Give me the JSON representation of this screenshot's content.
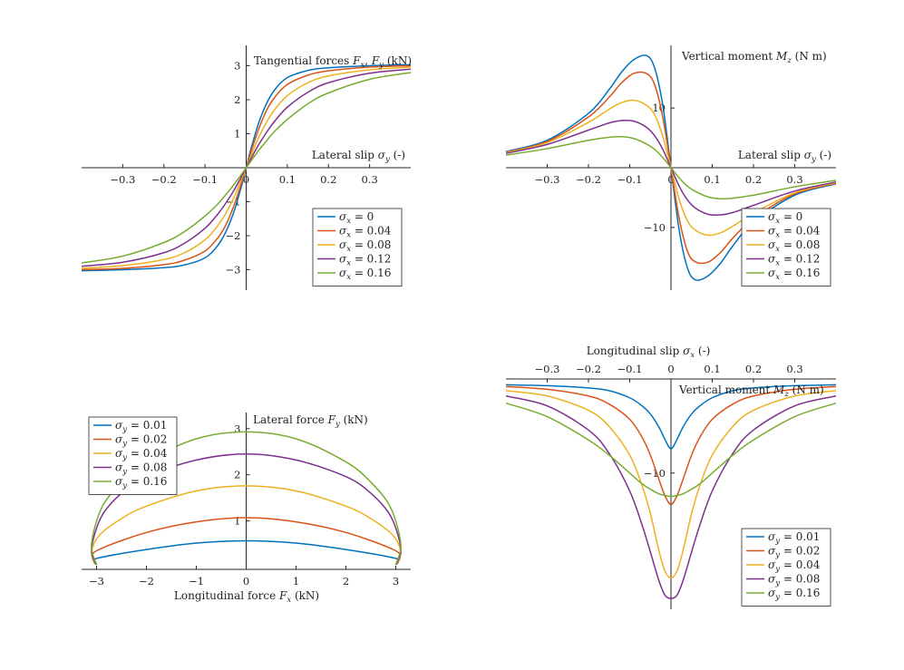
{
  "colors": [
    "#0072BD",
    "#D95319",
    "#EDB120",
    "#7E2F8E",
    "#77AC30"
  ],
  "chart_data": [
    {
      "type": "line",
      "title": "",
      "ylabel": "Tangential forces F_x, F_y (kN)",
      "ylabel_parts": [
        "Tangential forces ",
        "F",
        "x",
        ", ",
        "F",
        "y",
        " (kN)"
      ],
      "xlabel": "Lateral slip σ_y (-)",
      "xlabel_parts": [
        "Lateral slip ",
        "σ",
        "y",
        " (-)"
      ],
      "xlim": [
        -0.4,
        0.4
      ],
      "ylim": [
        -3.6,
        3.6
      ],
      "xticks": [
        -0.3,
        -0.2,
        -0.1,
        0,
        0.1,
        0.2,
        0.3
      ],
      "xtick_labels": [
        "−0.3",
        "−0.2",
        "−0.1",
        "0",
        "0.1",
        "0.2",
        "0.3"
      ],
      "yticks": [
        -3,
        -2,
        -1,
        1,
        2,
        3
      ],
      "ytick_labels": [
        "−3",
        "−2",
        "−1",
        "1",
        "2",
        "3"
      ],
      "legend_position": "lower-right",
      "legend_var": "σ",
      "legend_sub": "x",
      "series": [
        {
          "name": "σx = 0",
          "value_label": "0",
          "x": [
            -0.4,
            -0.3,
            -0.2,
            -0.15,
            -0.1,
            -0.07,
            -0.05,
            -0.03,
            -0.01,
            0,
            0.01,
            0.03,
            0.05,
            0.07,
            0.1,
            0.15,
            0.2,
            0.3,
            0.4
          ],
          "y": [
            -3.03,
            -3.0,
            -2.94,
            -2.86,
            -2.65,
            -2.3,
            -1.9,
            -1.3,
            -0.48,
            0,
            0.48,
            1.3,
            1.9,
            2.3,
            2.65,
            2.86,
            2.94,
            3.0,
            3.03
          ]
        },
        {
          "name": "σx = 0.04",
          "value_label": "0.04",
          "x": [
            -0.4,
            -0.3,
            -0.2,
            -0.15,
            -0.1,
            -0.07,
            -0.05,
            -0.03,
            -0.01,
            0,
            0.01,
            0.03,
            0.05,
            0.07,
            0.1,
            0.15,
            0.2,
            0.3,
            0.4
          ],
          "y": [
            -3.0,
            -2.96,
            -2.85,
            -2.72,
            -2.45,
            -2.08,
            -1.7,
            -1.12,
            -0.4,
            0,
            0.4,
            1.12,
            1.7,
            2.08,
            2.45,
            2.72,
            2.85,
            2.96,
            3.0
          ]
        },
        {
          "name": "σx = 0.08",
          "value_label": "0.08",
          "x": [
            -0.4,
            -0.3,
            -0.2,
            -0.15,
            -0.1,
            -0.07,
            -0.05,
            -0.03,
            -0.01,
            0,
            0.01,
            0.03,
            0.05,
            0.07,
            0.1,
            0.15,
            0.2,
            0.3,
            0.4
          ],
          "y": [
            -2.96,
            -2.88,
            -2.7,
            -2.5,
            -2.12,
            -1.72,
            -1.35,
            -0.88,
            -0.3,
            0,
            0.3,
            0.88,
            1.35,
            1.72,
            2.12,
            2.5,
            2.7,
            2.88,
            2.96
          ]
        },
        {
          "name": "σx = 0.12",
          "value_label": "0.12",
          "x": [
            -0.4,
            -0.3,
            -0.2,
            -0.15,
            -0.1,
            -0.07,
            -0.05,
            -0.03,
            -0.01,
            0,
            0.01,
            0.03,
            0.05,
            0.07,
            0.1,
            0.15,
            0.2,
            0.3,
            0.4
          ],
          "y": [
            -2.9,
            -2.78,
            -2.5,
            -2.22,
            -1.78,
            -1.38,
            -1.05,
            -0.67,
            -0.23,
            0,
            0.23,
            0.67,
            1.05,
            1.38,
            1.78,
            2.22,
            2.5,
            2.78,
            2.9
          ]
        },
        {
          "name": "σx = 0.16",
          "value_label": "0.16",
          "x": [
            -0.4,
            -0.3,
            -0.2,
            -0.15,
            -0.1,
            -0.07,
            -0.05,
            -0.03,
            -0.01,
            0,
            0.01,
            0.03,
            0.05,
            0.07,
            0.1,
            0.15,
            0.2,
            0.3,
            0.4
          ],
          "y": [
            -2.8,
            -2.6,
            -2.2,
            -1.88,
            -1.42,
            -1.08,
            -0.8,
            -0.5,
            -0.17,
            0,
            0.17,
            0.5,
            0.8,
            1.08,
            1.42,
            1.88,
            2.2,
            2.6,
            2.8
          ]
        }
      ]
    },
    {
      "type": "line",
      "title": "",
      "ylabel": "Vertical moment M_z (N m)",
      "ylabel_parts": [
        "Vertical moment ",
        "M",
        "z",
        " (N m)"
      ],
      "xlabel": "Lateral slip σ_y (-)",
      "xlabel_parts": [
        "Lateral slip ",
        "σ",
        "y",
        " (-)"
      ],
      "xlim": [
        -0.4,
        0.4
      ],
      "ylim": [
        -20.5,
        20.5
      ],
      "xticks": [
        -0.3,
        -0.2,
        -0.1,
        0,
        0.1,
        0.2,
        0.3
      ],
      "xtick_labels": [
        "−0.3",
        "−0.2",
        "−0.1",
        "0",
        "0.1",
        "0.2",
        "0.3"
      ],
      "yticks": [
        -10,
        10
      ],
      "ytick_labels": [
        "−10",
        "10"
      ],
      "legend_position": "lower-right",
      "legend_var": "σ",
      "legend_sub": "x",
      "series": [
        {
          "name": "σx = 0",
          "value_label": "0",
          "x": [
            -0.4,
            -0.3,
            -0.2,
            -0.15,
            -0.12,
            -0.09,
            -0.06,
            -0.04,
            -0.02,
            0,
            0.02,
            0.04,
            0.06,
            0.09,
            0.12,
            0.15,
            0.2,
            0.3,
            0.4
          ],
          "y": [
            2.7,
            4.6,
            9.1,
            13.1,
            16.0,
            18.1,
            18.8,
            16.8,
            10.5,
            0,
            -10.5,
            -16.8,
            -18.8,
            -18.1,
            -16.0,
            -13.1,
            -9.1,
            -4.6,
            -2.7
          ]
        },
        {
          "name": "σx = 0.04",
          "value_label": "0.04",
          "x": [
            -0.4,
            -0.3,
            -0.2,
            -0.15,
            -0.12,
            -0.09,
            -0.06,
            -0.04,
            -0.02,
            0,
            0.02,
            0.04,
            0.06,
            0.09,
            0.12,
            0.15,
            0.2,
            0.3,
            0.4
          ],
          "y": [
            2.6,
            4.4,
            8.5,
            11.8,
            14.2,
            15.8,
            15.8,
            14.0,
            8.5,
            0,
            -8.5,
            -14.0,
            -15.8,
            -15.8,
            -14.2,
            -11.8,
            -8.5,
            -4.4,
            -2.6
          ]
        },
        {
          "name": "σx = 0.08",
          "value_label": "0.08",
          "x": [
            -0.4,
            -0.3,
            -0.2,
            -0.15,
            -0.12,
            -0.09,
            -0.06,
            -0.04,
            -0.02,
            0,
            0.02,
            0.04,
            0.06,
            0.09,
            0.12,
            0.15,
            0.2,
            0.3,
            0.4
          ],
          "y": [
            2.5,
            4.2,
            7.6,
            9.8,
            10.9,
            11.3,
            10.5,
            8.9,
            5.3,
            0,
            -5.3,
            -8.9,
            -10.5,
            -11.3,
            -10.9,
            -9.8,
            -7.6,
            -4.2,
            -2.5
          ]
        },
        {
          "name": "σx = 0.12",
          "value_label": "0.12",
          "x": [
            -0.4,
            -0.3,
            -0.2,
            -0.15,
            -0.12,
            -0.09,
            -0.06,
            -0.04,
            -0.02,
            0,
            0.02,
            0.04,
            0.06,
            0.09,
            0.12,
            0.15,
            0.2,
            0.3,
            0.4
          ],
          "y": [
            2.4,
            3.9,
            6.3,
            7.5,
            7.9,
            7.8,
            6.8,
            5.4,
            3.1,
            0,
            -3.1,
            -5.4,
            -6.8,
            -7.8,
            -7.9,
            -7.5,
            -6.3,
            -3.9,
            -2.4
          ]
        },
        {
          "name": "σx = 0.16",
          "value_label": "0.16",
          "x": [
            -0.4,
            -0.3,
            -0.2,
            -0.15,
            -0.12,
            -0.09,
            -0.06,
            -0.04,
            -0.02,
            0,
            0.02,
            0.04,
            0.06,
            0.09,
            0.12,
            0.15,
            0.2,
            0.3,
            0.4
          ],
          "y": [
            2.1,
            3.2,
            4.6,
            5.1,
            5.2,
            4.9,
            4.0,
            3.1,
            1.7,
            0,
            -1.7,
            -3.1,
            -4.0,
            -4.9,
            -5.2,
            -5.1,
            -4.6,
            -3.2,
            -2.1
          ]
        }
      ]
    },
    {
      "type": "line",
      "title": "",
      "ylabel": "Lateral force F_y (kN)",
      "ylabel_parts": [
        "Lateral force ",
        "F",
        "y",
        " (kN)"
      ],
      "xlabel": "Longitudinal force F_x (kN)",
      "xlabel_parts": [
        "Longitudinal force ",
        "F",
        "x",
        " (kN)"
      ],
      "xlim": [
        -3.3,
        3.3
      ],
      "ylim": [
        -0.05,
        3.35
      ],
      "xticks": [
        -3,
        -2,
        -1,
        0,
        1,
        2,
        3
      ],
      "xtick_labels": [
        "−3",
        "−2",
        "−1",
        "0",
        "1",
        "2",
        "3"
      ],
      "yticks": [
        1,
        2,
        3
      ],
      "ytick_labels": [
        "1",
        "2",
        "3"
      ],
      "legend_position": "top-left",
      "legend_var": "σ",
      "legend_sub": "y",
      "series": [
        {
          "name": "σy = 0.01",
          "value_label": "0.01",
          "x": [
            -3.0,
            -3.05,
            -2.95,
            -2.0,
            -1.0,
            0,
            1.0,
            2.0,
            2.95,
            3.05,
            3.0
          ],
          "y": [
            0.05,
            0.12,
            0.2,
            0.38,
            0.52,
            0.57,
            0.52,
            0.38,
            0.2,
            0.12,
            0.05
          ]
        },
        {
          "name": "σy = 0.02",
          "value_label": "0.02",
          "x": [
            -3.0,
            -3.08,
            -2.95,
            -2.0,
            -1.0,
            0,
            1.0,
            2.0,
            2.95,
            3.08,
            3.0
          ],
          "y": [
            0.05,
            0.2,
            0.38,
            0.75,
            0.98,
            1.07,
            0.98,
            0.75,
            0.38,
            0.2,
            0.05
          ]
        },
        {
          "name": "σy = 0.04",
          "value_label": "0.04",
          "x": [
            -3.0,
            -3.1,
            -2.95,
            -2.5,
            -2.0,
            -1.0,
            0,
            1.0,
            2.0,
            2.5,
            2.95,
            3.1,
            3.0
          ],
          "y": [
            0.05,
            0.3,
            0.68,
            1.05,
            1.32,
            1.65,
            1.76,
            1.65,
            1.32,
            1.05,
            0.68,
            0.3,
            0.05
          ]
        },
        {
          "name": "σy = 0.08",
          "value_label": "0.08",
          "x": [
            -3.0,
            -3.1,
            -2.9,
            -2.5,
            -2.0,
            -1.0,
            0,
            1.0,
            2.0,
            2.5,
            2.9,
            3.1,
            3.0
          ],
          "y": [
            0.05,
            0.4,
            1.1,
            1.6,
            1.96,
            2.32,
            2.45,
            2.32,
            1.96,
            1.6,
            1.1,
            0.4,
            0.05
          ]
        },
        {
          "name": "σy = 0.16",
          "value_label": "0.16",
          "x": [
            -3.0,
            -3.1,
            -2.9,
            -2.5,
            -2.0,
            -1.0,
            0,
            1.0,
            2.0,
            2.5,
            2.9,
            3.1,
            3.0
          ],
          "y": [
            0.05,
            0.5,
            1.28,
            1.84,
            2.28,
            2.78,
            2.93,
            2.78,
            2.28,
            1.84,
            1.28,
            0.5,
            0.05
          ]
        }
      ]
    },
    {
      "type": "line",
      "title": "",
      "ylabel": "Vertical moment M_z (N m)",
      "ylabel_parts": [
        "Vertical moment ",
        "M",
        "z",
        " (N m)"
      ],
      "xlabel": "Longitudinal slip σ_x (-)",
      "xlabel_parts": [
        "Longitudinal slip ",
        "σ",
        "x",
        " (-)"
      ],
      "xlim": [
        -0.4,
        0.4
      ],
      "ylim": [
        -25.2,
        0.5
      ],
      "xticks": [
        -0.3,
        -0.2,
        -0.1,
        0,
        0.1,
        0.2,
        0.3
      ],
      "xtick_labels": [
        "−0.3",
        "−0.2",
        "−0.1",
        "0",
        "0.1",
        "0.2",
        "0.3"
      ],
      "yticks": [
        -10
      ],
      "ytick_labels": [
        "−10"
      ],
      "legend_position": "lower-right",
      "legend_var": "σ",
      "legend_sub": "y",
      "series": [
        {
          "name": "σy = 0.01",
          "value_label": "0.01",
          "x": [
            -0.4,
            -0.3,
            -0.2,
            -0.15,
            -0.1,
            -0.07,
            -0.05,
            -0.03,
            -0.015,
            0,
            0.015,
            0.03,
            0.05,
            0.07,
            0.1,
            0.15,
            0.2,
            0.3,
            0.4
          ],
          "y": [
            -0.15,
            -0.25,
            -0.5,
            -0.8,
            -1.6,
            -2.5,
            -3.4,
            -4.8,
            -6.2,
            -7.3,
            -6.2,
            -4.8,
            -3.4,
            -2.5,
            -1.6,
            -0.8,
            -0.5,
            -0.25,
            -0.15
          ]
        },
        {
          "name": "σy = 0.02",
          "value_label": "0.02",
          "x": [
            -0.4,
            -0.3,
            -0.2,
            -0.15,
            -0.1,
            -0.07,
            -0.05,
            -0.03,
            -0.015,
            0,
            0.015,
            0.03,
            0.05,
            0.07,
            0.1,
            0.15,
            0.2,
            0.3,
            0.4
          ],
          "y": [
            -0.35,
            -0.65,
            -1.4,
            -2.3,
            -4.0,
            -6.0,
            -8.0,
            -10.6,
            -12.5,
            -13.5,
            -12.5,
            -10.6,
            -8.0,
            -6.0,
            -4.0,
            -2.3,
            -1.4,
            -0.65,
            -0.35
          ]
        },
        {
          "name": "σy = 0.04",
          "value_label": "0.04",
          "x": [
            -0.4,
            -0.3,
            -0.2,
            -0.15,
            -0.1,
            -0.07,
            -0.05,
            -0.03,
            -0.015,
            0,
            0.015,
            0.03,
            0.05,
            0.07,
            0.1,
            0.15,
            0.2,
            0.3,
            0.4
          ],
          "y": [
            -0.8,
            -1.4,
            -3.0,
            -4.8,
            -8.0,
            -11.4,
            -14.5,
            -18.5,
            -20.9,
            -21.7,
            -20.9,
            -18.5,
            -14.5,
            -11.4,
            -8.0,
            -4.8,
            -3.0,
            -1.4,
            -0.8
          ]
        },
        {
          "name": "σy = 0.08",
          "value_label": "0.08",
          "x": [
            -0.4,
            -0.3,
            -0.2,
            -0.15,
            -0.1,
            -0.07,
            -0.05,
            -0.03,
            -0.015,
            0,
            0.015,
            0.03,
            0.05,
            0.07,
            0.1,
            0.15,
            0.2,
            0.3,
            0.4
          ],
          "y": [
            -1.4,
            -2.5,
            -5.2,
            -7.8,
            -12.0,
            -15.8,
            -18.8,
            -21.9,
            -23.6,
            -24.0,
            -23.6,
            -21.9,
            -18.8,
            -15.8,
            -12.0,
            -7.8,
            -5.2,
            -2.5,
            -1.4
          ]
        },
        {
          "name": "σy = 0.16",
          "value_label": "0.16",
          "x": [
            -0.4,
            -0.3,
            -0.2,
            -0.15,
            -0.1,
            -0.07,
            -0.05,
            -0.03,
            -0.015,
            0,
            0.015,
            0.03,
            0.05,
            0.07,
            0.1,
            0.15,
            0.2,
            0.3,
            0.4
          ],
          "y": [
            -2.2,
            -3.7,
            -6.3,
            -8.0,
            -10.0,
            -11.2,
            -11.8,
            -12.3,
            -12.5,
            -12.6,
            -12.5,
            -12.3,
            -11.8,
            -11.2,
            -10.0,
            -8.0,
            -6.3,
            -3.7,
            -2.2
          ]
        }
      ]
    }
  ]
}
